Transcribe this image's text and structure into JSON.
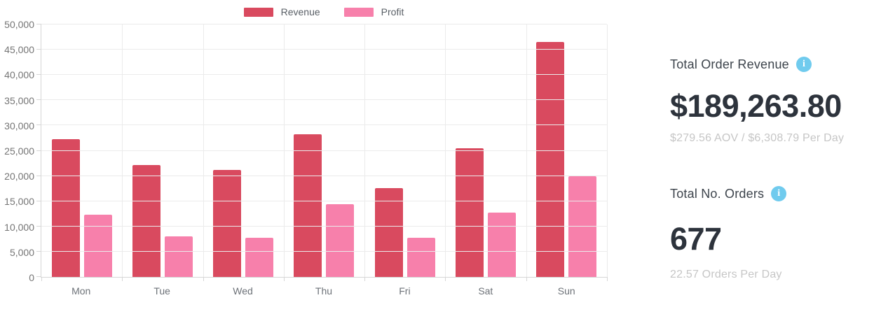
{
  "chart_data": {
    "type": "bar",
    "title": "",
    "categories": [
      "Mon",
      "Tue",
      "Wed",
      "Thu",
      "Fri",
      "Sat",
      "Sun"
    ],
    "series": [
      {
        "name": "Revenue",
        "color": "#d94a5f",
        "values": [
          27300,
          22100,
          21200,
          28300,
          17600,
          25500,
          46500
        ]
      },
      {
        "name": "Profit",
        "color": "#f780ab",
        "values": [
          12300,
          8100,
          7800,
          14400,
          7700,
          12800,
          19900
        ]
      }
    ],
    "xlabel": "",
    "ylabel": "",
    "ylim": [
      0,
      50000
    ],
    "ytick_step": 5000,
    "ytick_labels": [
      "0",
      "5,000",
      "10,000",
      "15,000",
      "20,000",
      "25,000",
      "30,000",
      "35,000",
      "40,000",
      "45,000",
      "50,000"
    ],
    "grid": true,
    "legend_position": "top"
  },
  "legend": {
    "items": [
      {
        "label": "Revenue",
        "color": "#d94a5f"
      },
      {
        "label": "Profit",
        "color": "#f780ab"
      }
    ]
  },
  "stats": {
    "revenue": {
      "title": "Total Order Revenue",
      "value": "$189,263.80",
      "subtitle": "$279.56 AOV / $6,308.79 Per Day",
      "info_glyph": "i"
    },
    "orders": {
      "title": "Total No. Orders",
      "value": "677",
      "subtitle": "22.57 Orders Per Day",
      "info_glyph": "i"
    }
  },
  "colors": {
    "revenue": "#d94a5f",
    "profit": "#f780ab",
    "info_icon": "#70cbee",
    "grid": "#ebebeb",
    "axis": "#d6d6d6",
    "tick_text": "#757575",
    "legend_text": "#595f66",
    "stat_title_text": "#3d444c",
    "stat_value_text": "#2d333c",
    "stat_subtitle_text": "#c6c6c6"
  }
}
